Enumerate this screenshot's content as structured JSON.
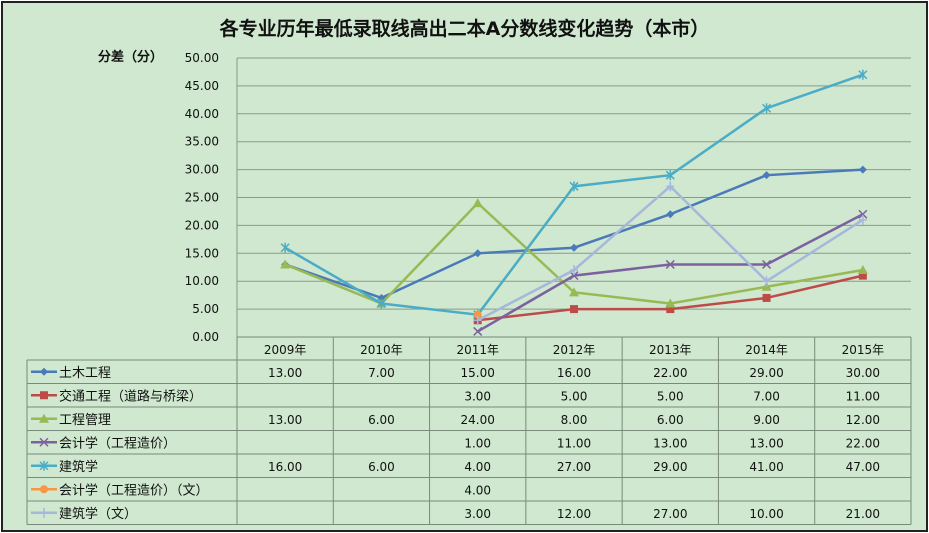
{
  "chart_data": {
    "type": "line",
    "title": "各专业历年最低录取线高出二本A分数线变化趋势（本市）",
    "ylabel": "分差（分）",
    "xlabel": "",
    "ylim": [
      0,
      50
    ],
    "yticks": [
      "0.00",
      "5.00",
      "10.00",
      "15.00",
      "20.00",
      "25.00",
      "30.00",
      "35.00",
      "40.00",
      "45.00",
      "50.00"
    ],
    "grid": true,
    "legend": "data-table-bottom",
    "categories": [
      "2009年",
      "2010年",
      "2011年",
      "2012年",
      "2013年",
      "2014年",
      "2015年"
    ],
    "series": [
      {
        "name": "土木工程",
        "color": "#4a7ab8",
        "marker": "diamond",
        "values": [
          13,
          7,
          15,
          16,
          22,
          29,
          30
        ],
        "labels": [
          "13.00",
          "7.00",
          "15.00",
          "16.00",
          "22.00",
          "29.00",
          "30.00"
        ]
      },
      {
        "name": "交通工程（道路与桥梁）",
        "color": "#be4b48",
        "marker": "square",
        "values": [
          null,
          null,
          3,
          5,
          5,
          7,
          11
        ],
        "labels": [
          "",
          "",
          "3.00",
          "5.00",
          "5.00",
          "7.00",
          "11.00"
        ]
      },
      {
        "name": "工程管理",
        "color": "#98b954",
        "marker": "triangle",
        "values": [
          13,
          6,
          24,
          8,
          6,
          9,
          12
        ],
        "labels": [
          "13.00",
          "6.00",
          "24.00",
          "8.00",
          "6.00",
          "9.00",
          "12.00"
        ]
      },
      {
        "name": "会计学（工程造价）",
        "color": "#7d60a0",
        "marker": "x",
        "values": [
          null,
          null,
          1,
          11,
          13,
          13,
          22
        ],
        "labels": [
          "",
          "",
          "1.00",
          "11.00",
          "13.00",
          "13.00",
          "22.00"
        ]
      },
      {
        "name": "建筑学",
        "color": "#4bacc6",
        "marker": "star",
        "values": [
          16,
          6,
          4,
          27,
          29,
          41,
          47
        ],
        "labels": [
          "16.00",
          "6.00",
          "4.00",
          "27.00",
          "29.00",
          "41.00",
          "47.00"
        ]
      },
      {
        "name": "会计学（工程造价）（文）",
        "color": "#f79646",
        "marker": "circle",
        "values": [
          null,
          null,
          4,
          null,
          null,
          null,
          null
        ],
        "labels": [
          "",
          "",
          "4.00",
          "",
          "",
          "",
          ""
        ]
      },
      {
        "name": "建筑学（文）",
        "color": "#a5b8dc",
        "marker": "plus",
        "values": [
          null,
          null,
          3,
          12,
          27,
          10,
          21
        ],
        "labels": [
          "",
          "",
          "3.00",
          "12.00",
          "27.00",
          "10.00",
          "21.00"
        ]
      }
    ]
  }
}
